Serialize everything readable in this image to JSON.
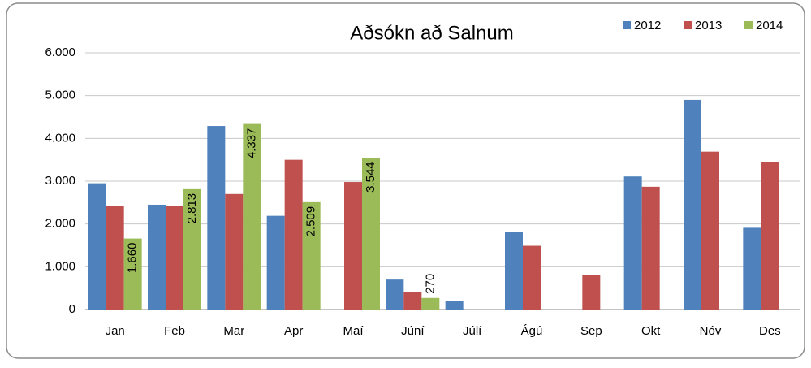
{
  "chart_data": {
    "type": "bar",
    "title": "Aðsókn að Salnum",
    "categories": [
      "Jan",
      "Feb",
      "Mar",
      "Apr",
      "Maí",
      "Júní",
      "Júlí",
      "Ágú",
      "Sep",
      "Okt",
      "Nóv",
      "Des"
    ],
    "series": [
      {
        "name": "2012",
        "color": "#4f81bd",
        "values": [
          2950,
          2450,
          4290,
          2190,
          null,
          700,
          190,
          1810,
          null,
          3110,
          4900,
          1910
        ]
      },
      {
        "name": "2013",
        "color": "#c0504d",
        "values": [
          2420,
          2430,
          2700,
          3500,
          2980,
          410,
          null,
          1490,
          800,
          2870,
          3690,
          3440
        ]
      },
      {
        "name": "2014",
        "color": "#9bbb59",
        "values": [
          1660,
          2813,
          4337,
          2509,
          3544,
          270,
          null,
          null,
          null,
          null,
          null,
          null
        ],
        "value_labels": [
          "1.660",
          "2.813",
          "4.337",
          "2.509",
          "3.544",
          "270",
          null,
          null,
          null,
          null,
          null,
          null
        ]
      }
    ],
    "ylim": [
      0,
      6000
    ],
    "yticks": [
      0,
      {
        "value": 1000,
        "label": "1.000"
      },
      {
        "value": 2000,
        "label": "2.000"
      },
      {
        "value": 3000,
        "label": "3.000"
      },
      {
        "value": 4000,
        "label": "4.000"
      },
      {
        "value": 5000,
        "label": "5.000"
      },
      {
        "value": 6000,
        "label": "6.000"
      }
    ],
    "grid": true,
    "legend": "top-right"
  }
}
